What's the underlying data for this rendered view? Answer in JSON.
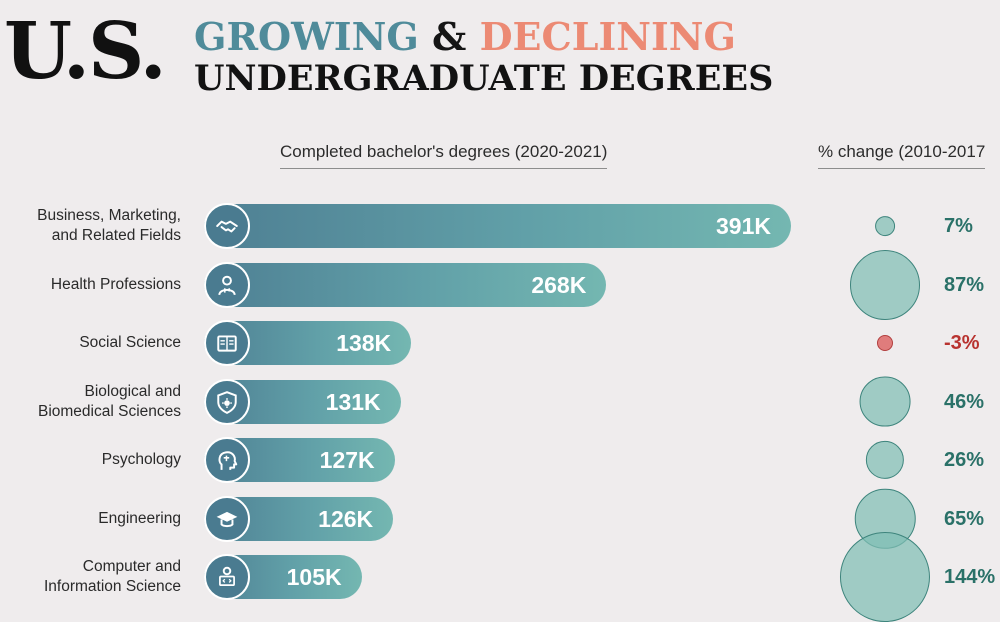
{
  "title": {
    "prefix": "U.S.",
    "growing": "GROWING",
    "amp": "&",
    "declining": "DECLINING",
    "line2": "UNDERGRADUATE DEGREES"
  },
  "colors": {
    "growing": "#4f8b9a",
    "declining": "#ec8a74",
    "bar_start": "#4e7f93",
    "bar_end": "#74b7b1",
    "bubble_positive": "#80beb4",
    "bubble_negative": "#e07c7c",
    "pct_positive": "#2a7168",
    "pct_negative": "#b8322f",
    "background": "#efeced"
  },
  "chart_data": {
    "type": "bar",
    "orientation": "horizontal",
    "left_header": "Completed bachelor's degrees (2020-2021)",
    "right_header": "% change (2010-2017",
    "unit": "K",
    "categories": [
      "Business, Marketing,\nand Related Fields",
      "Health Professions",
      "Social Science",
      "Biological and\nBiomedical Sciences",
      "Psychology",
      "Engineering",
      "Computer and\nInformation Science"
    ],
    "icons": [
      "handshake-icon",
      "doctor-icon",
      "book-icon",
      "shield-virus-icon",
      "brain-head-icon",
      "graduation-cap-icon",
      "computer-user-icon"
    ],
    "values": [
      391,
      268,
      138,
      131,
      127,
      126,
      105
    ],
    "value_labels": [
      "391K",
      "268K",
      "138K",
      "131K",
      "127K",
      "126K",
      "105K"
    ],
    "pct_change": [
      7,
      87,
      -3,
      46,
      26,
      65,
      144
    ],
    "pct_labels": [
      "7%",
      "87%",
      "-3%",
      "46%",
      "26%",
      "65%",
      "144%"
    ]
  }
}
